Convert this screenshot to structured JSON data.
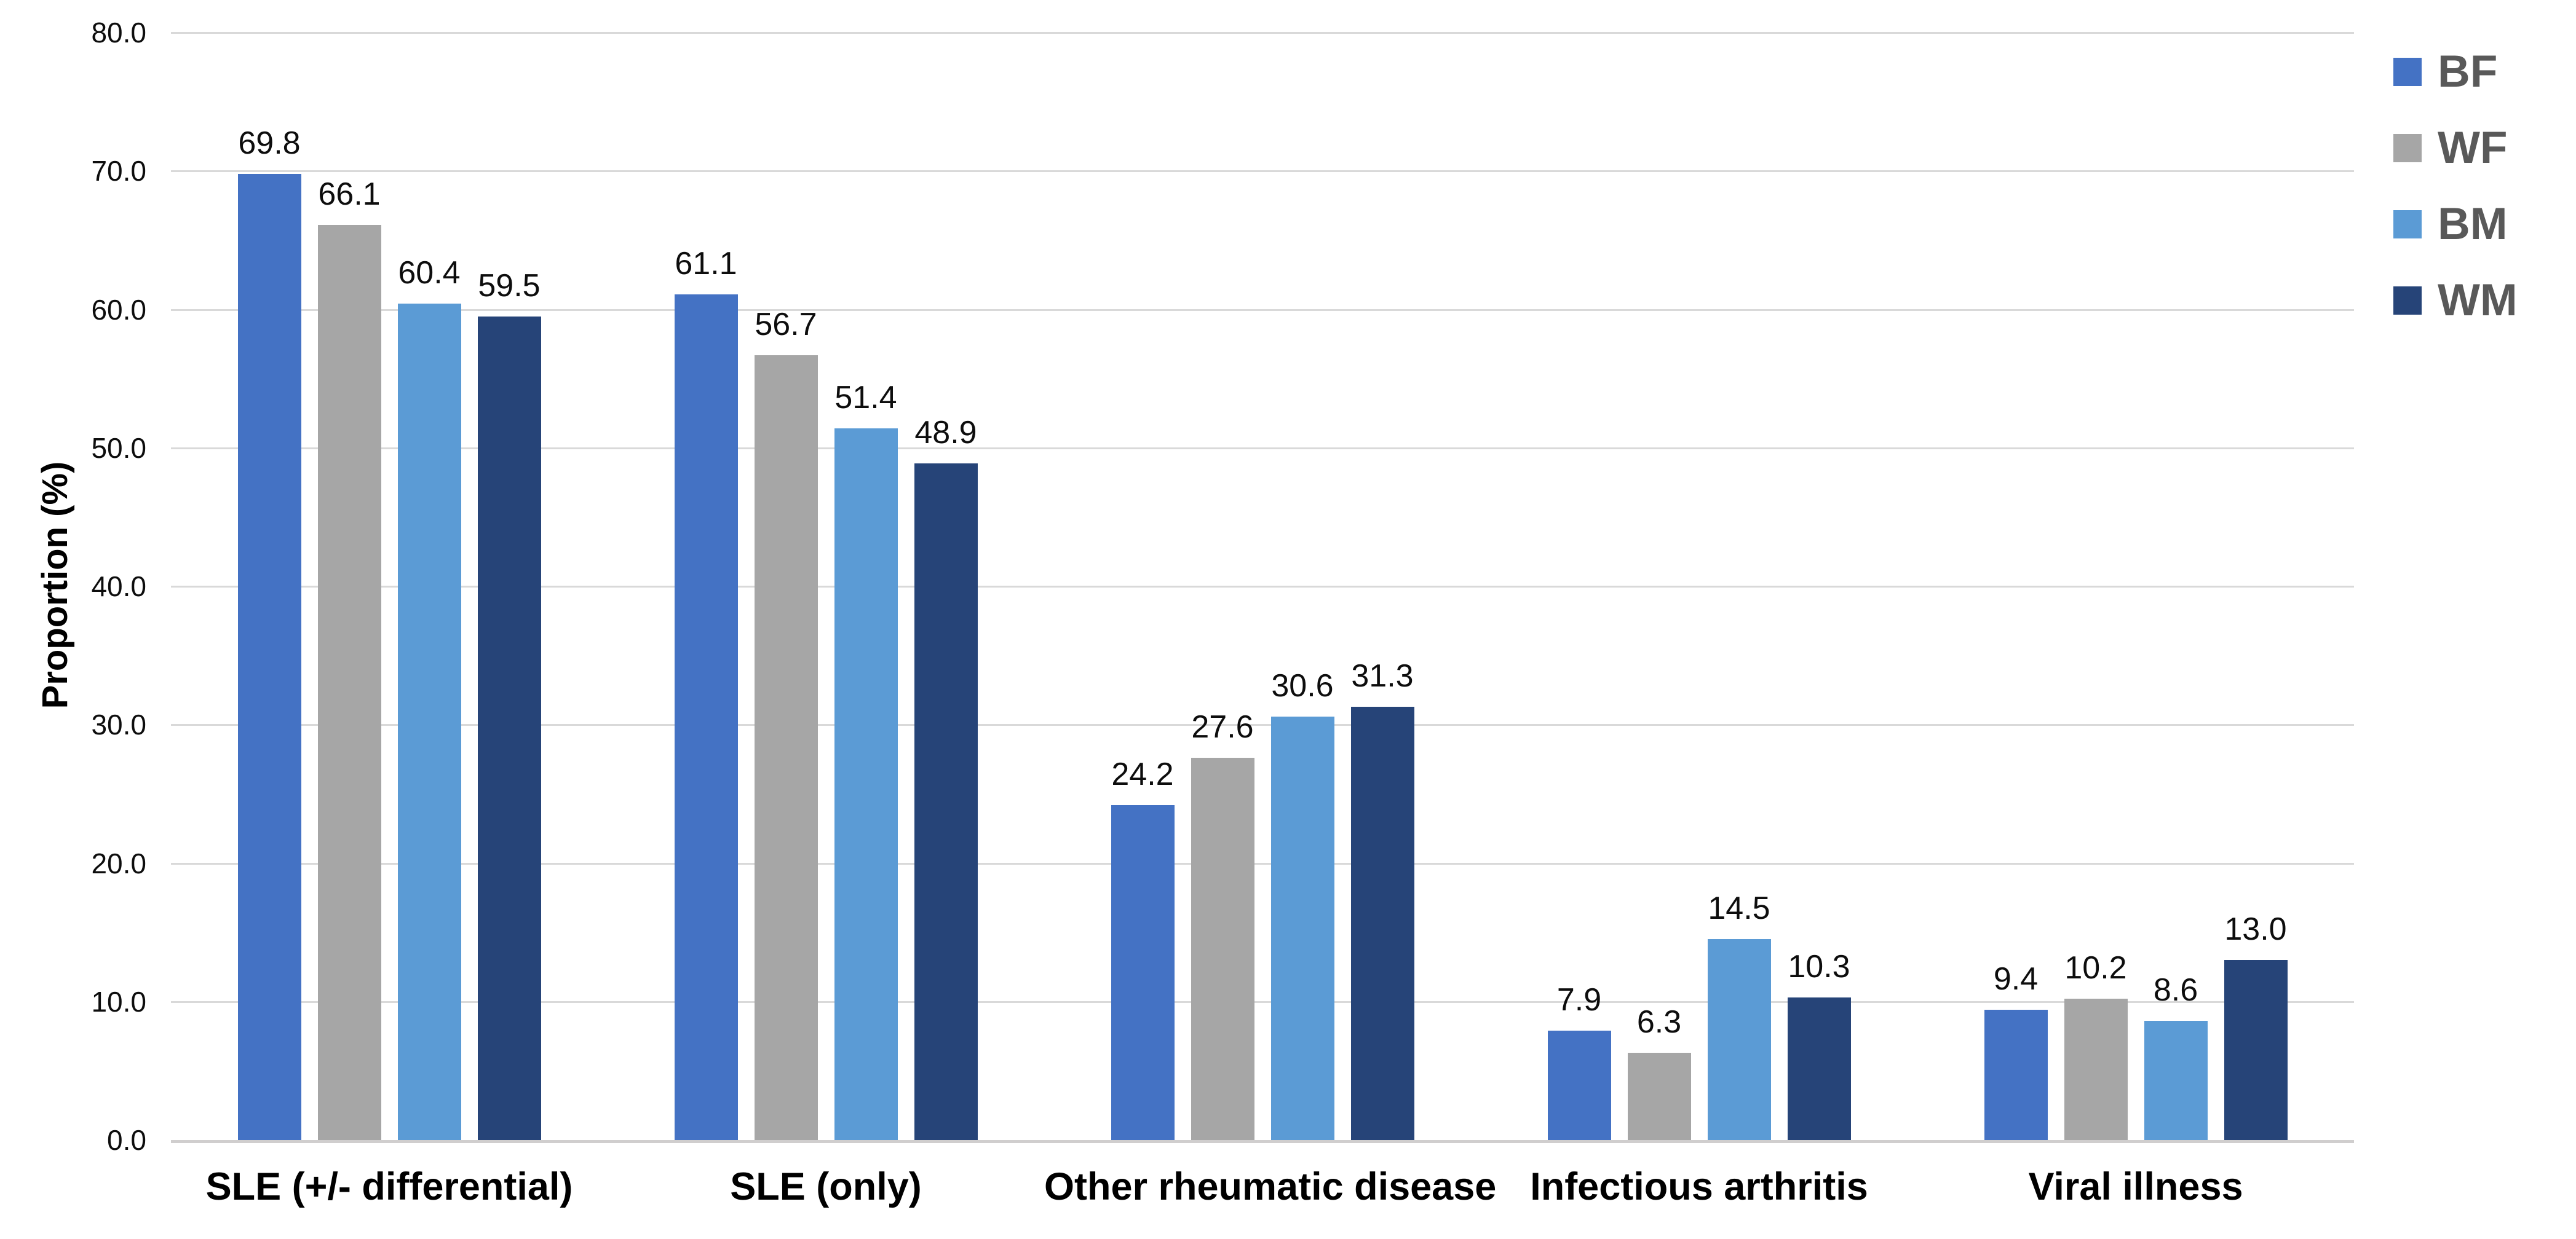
{
  "chart_data": {
    "type": "bar",
    "title": "",
    "ylabel": "Proportion (%)",
    "ylim": [
      0,
      80
    ],
    "ytick_step": 10,
    "yticks": [
      0,
      10,
      20,
      30,
      40,
      50,
      60,
      70,
      80
    ],
    "ytick_label_format": "one-decimal",
    "grid": true,
    "gridline_color": "#d9d9d9",
    "axis_line_color": "#d0cece",
    "value_labels": true,
    "legend_position": "right",
    "legend_text_color": "#595959",
    "categories": [
      "SLE (+/- differential)",
      "SLE (only)",
      "Other rheumatic disease",
      "Infectious arthritis",
      "Viral illness"
    ],
    "series": [
      {
        "name": "BF",
        "color": "#4472c4",
        "values": [
          69.8,
          61.1,
          24.2,
          7.9,
          9.4
        ]
      },
      {
        "name": "WF",
        "color": "#a6a6a6",
        "values": [
          66.1,
          56.7,
          27.6,
          6.3,
          10.2
        ]
      },
      {
        "name": "BM",
        "color": "#5b9bd5",
        "values": [
          60.4,
          51.4,
          30.6,
          14.5,
          8.6
        ]
      },
      {
        "name": "WM",
        "color": "#264478",
        "values": [
          59.5,
          48.9,
          31.3,
          10.3,
          13.0
        ]
      }
    ]
  }
}
